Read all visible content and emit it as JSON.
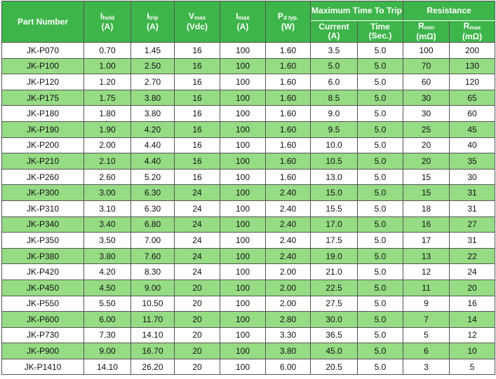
{
  "table": {
    "header": {
      "part_number": "Part Number",
      "single": [
        {
          "symbol": "I",
          "sub": "hold",
          "unit": "(A)"
        },
        {
          "symbol": "I",
          "sub": "trip",
          "unit": "(A)"
        },
        {
          "symbol": "V",
          "sub": "max",
          "unit": "(Vdc)"
        },
        {
          "symbol": "I",
          "sub": "max",
          "unit": "(A)"
        },
        {
          "symbol": "P",
          "sub": "d typ.",
          "unit": "(W)"
        }
      ],
      "groups": [
        {
          "title": "Maximum Time To Trip",
          "columns": [
            {
              "symbol": "Current",
              "unit": "(A)"
            },
            {
              "symbol": "Time",
              "unit": "(Sec.)"
            }
          ]
        },
        {
          "title": "Resistance",
          "columns": [
            {
              "symbol": "R",
              "sub": "min",
              "unit": "(mΩ)"
            },
            {
              "symbol": "R",
              "sub": "max",
              "unit": "(mΩ)"
            }
          ]
        }
      ]
    },
    "rows": [
      [
        "JK-P070",
        "0.70",
        "1.45",
        "16",
        "100",
        "1.60",
        "3.5",
        "5.0",
        "100",
        "200"
      ],
      [
        "JK-P100",
        "1.00",
        "2.50",
        "16",
        "100",
        "1.60",
        "5.0",
        "5.0",
        "70",
        "130"
      ],
      [
        "JK-P120",
        "1.20",
        "2.70",
        "16",
        "100",
        "1.60",
        "6.0",
        "5.0",
        "60",
        "120"
      ],
      [
        "JK-P175",
        "1.75",
        "3.80",
        "16",
        "100",
        "1.60",
        "8.5",
        "5.0",
        "30",
        "65"
      ],
      [
        "JK-P180",
        "1.80",
        "3.80",
        "16",
        "100",
        "1.60",
        "9.0",
        "5.0",
        "30",
        "60"
      ],
      [
        "JK-P190",
        "1.90",
        "4.20",
        "16",
        "100",
        "1.60",
        "9.5",
        "5.0",
        "25",
        "45"
      ],
      [
        "JK-P200",
        "2.00",
        "4.40",
        "16",
        "100",
        "1.60",
        "10.0",
        "5.0",
        "20",
        "40"
      ],
      [
        "JK-P210",
        "2.10",
        "4.40",
        "16",
        "100",
        "1.60",
        "10.5",
        "5.0",
        "20",
        "35"
      ],
      [
        "JK-P260",
        "2.60",
        "5.20",
        "16",
        "100",
        "1.60",
        "13.0",
        "5.0",
        "15",
        "30"
      ],
      [
        "JK-P300",
        "3.00",
        "6.30",
        "24",
        "100",
        "2.40",
        "15.0",
        "5.0",
        "15",
        "31"
      ],
      [
        "JK-P310",
        "3.10",
        "6.30",
        "24",
        "100",
        "2.40",
        "15.5",
        "5.0",
        "18",
        "31"
      ],
      [
        "JK-P340",
        "3.40",
        "6.80",
        "24",
        "100",
        "2.40",
        "17.0",
        "5.0",
        "16",
        "27"
      ],
      [
        "JK-P350",
        "3.50",
        "7.00",
        "24",
        "100",
        "2.40",
        "17.5",
        "5.0",
        "17",
        "31"
      ],
      [
        "JK-P380",
        "3.80",
        "7.60",
        "24",
        "100",
        "2.40",
        "19.0",
        "5.0",
        "13",
        "22"
      ],
      [
        "JK-P420",
        "4.20",
        "8.30",
        "24",
        "100",
        "2.00",
        "21.0",
        "5.0",
        "12",
        "24"
      ],
      [
        "JK-P450",
        "4.50",
        "9.00",
        "20",
        "100",
        "2.00",
        "22.5",
        "5.0",
        "11",
        "20"
      ],
      [
        "JK-P550",
        "5.50",
        "10.50",
        "20",
        "100",
        "2.00",
        "27.5",
        "5.0",
        "9",
        "16"
      ],
      [
        "JK-P600",
        "6.00",
        "11.70",
        "20",
        "100",
        "2.80",
        "30.0",
        "5.0",
        "7",
        "14"
      ],
      [
        "JK-P730",
        "7.30",
        "14.10",
        "20",
        "100",
        "3.30",
        "36.5",
        "5.0",
        "5",
        "12"
      ],
      [
        "JK-P900",
        "9.00",
        "16.70",
        "20",
        "100",
        "3.80",
        "45.0",
        "5.0",
        "6",
        "10"
      ],
      [
        "JK-P1410",
        "14.10",
        "26.20",
        "20",
        "100",
        "6.00",
        "20.5",
        "5.0",
        "3",
        "5"
      ]
    ]
  }
}
